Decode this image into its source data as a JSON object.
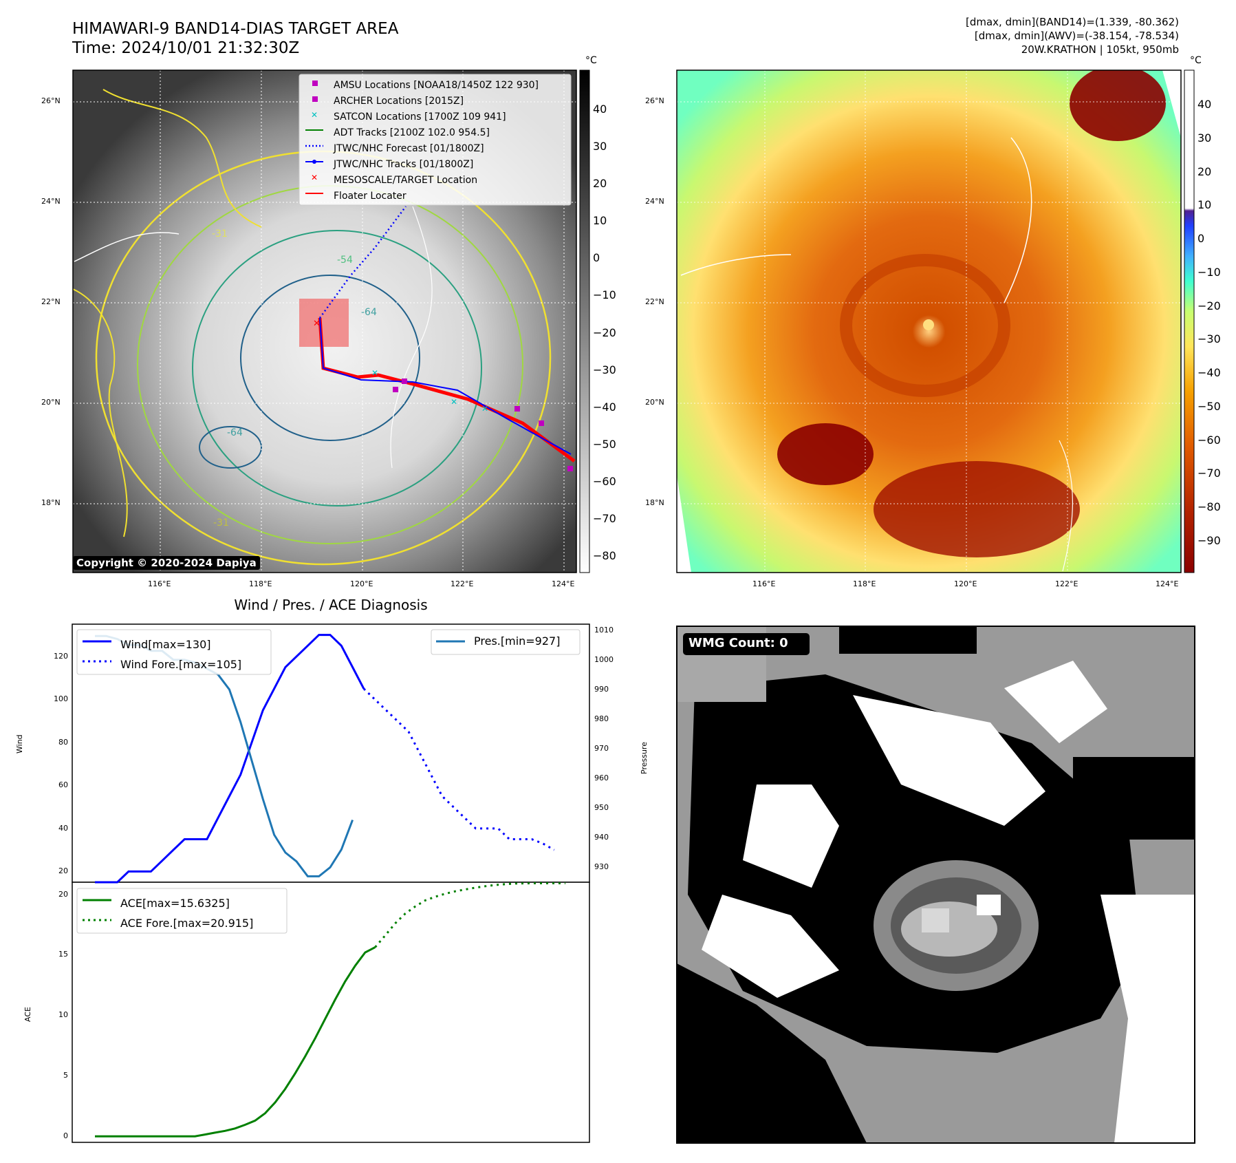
{
  "header": {
    "title_line1": "HIMAWARI-9 BAND14-DIAS TARGET AREA",
    "title_line2": "Time: 2024/10/01 21:32:30Z",
    "right_line1": "[dmax, dmin](BAND14)=(1.339, -80.362)",
    "right_line2": "[dmax, dmin](AWV)=(-38.154, -78.534)",
    "right_line3": "20W.KRATHON | 105kt, 950mb"
  },
  "map_axes": {
    "lat_labels": [
      "26°N",
      "24°N",
      "22°N",
      "20°N",
      "18°N"
    ],
    "lon_labels": [
      "116°E",
      "118°E",
      "120°E",
      "122°E",
      "124°E"
    ]
  },
  "panel1": {
    "copyright": "Copyright © 2020-2024 Dapiya",
    "contour_labels": [
      "-31",
      "-54",
      "-64"
    ],
    "legend": [
      {
        "label": "AMSU Locations [NOAA18/1450Z 122 930]",
        "color": "#c000c0",
        "marker": "square"
      },
      {
        "label": "ARCHER Locations [2015Z]",
        "color": "#c000c0",
        "marker": "square"
      },
      {
        "label": "SATCON Locations [1700Z 109 941]",
        "color": "#00c0c0",
        "marker": "x"
      },
      {
        "label": "ADT Tracks [2100Z 102.0 954.5]",
        "color": "#008000",
        "marker": "line"
      },
      {
        "label": "JTWC/NHC Forecast [01/1800Z]",
        "color": "#0000ff",
        "marker": "dotted"
      },
      {
        "label": "JTWC/NHC Tracks [01/1800Z]",
        "color": "#0000ff",
        "marker": "line-dot"
      },
      {
        "label": "MESOSCALE/TARGET Location",
        "color": "#ff0000",
        "marker": "x"
      },
      {
        "label": "Floater Locater",
        "color": "#ff0000",
        "marker": "line"
      }
    ],
    "colorbar": {
      "unit": "°C",
      "ticks": [
        "40",
        "30",
        "20",
        "10",
        "0",
        "−10",
        "−20",
        "−30",
        "−40",
        "−50",
        "−60",
        "−70",
        "−80"
      ]
    }
  },
  "panel2": {
    "colorbar": {
      "unit": "°C",
      "ticks": [
        "40",
        "30",
        "20",
        "10",
        "0",
        "−10",
        "−20",
        "−30",
        "−40",
        "−50",
        "−60",
        "−70",
        "−80",
        "−90"
      ]
    }
  },
  "panel3": {
    "title": "Wind / Pres. / ACE Diagnosis",
    "wind_ylabel": "Wind",
    "pres_ylabel": "Pressure",
    "ace_ylabel": "ACE",
    "wind_ticks": [
      "120",
      "100",
      "80",
      "60",
      "40",
      "20"
    ],
    "pres_ticks": [
      "1010",
      "1000",
      "990",
      "980",
      "970",
      "960",
      "950",
      "940",
      "930"
    ],
    "ace_ticks": [
      "20",
      "15",
      "10",
      "5",
      "0"
    ],
    "legend_wind": "Wind[max=130]",
    "legend_wind_fore": "Wind Fore.[max=105]",
    "legend_pres": "Pres.[min=927]",
    "legend_ace": "ACE[max=15.6325]",
    "legend_ace_fore": "ACE Fore.[max=20.915]"
  },
  "panel4": {
    "badge": "WMG Count: 0"
  },
  "chart_data": [
    {
      "type": "line",
      "title": "Wind / Pres. / ACE Diagnosis",
      "ylabel": "Wind",
      "ylim": [
        15,
        135
      ],
      "y2label": "Pressure",
      "y2lim": [
        925,
        1012
      ],
      "series": [
        {
          "name": "Wind[max=130]",
          "axis": "left",
          "color": "#0000ff",
          "style": "solid",
          "values": [
            15,
            15,
            15,
            20,
            20,
            20,
            25,
            30,
            35,
            35,
            35,
            45,
            55,
            65,
            80,
            95,
            105,
            115,
            120,
            125,
            130,
            130,
            125,
            115,
            105
          ]
        },
        {
          "name": "Wind Fore.[max=105]",
          "axis": "left",
          "color": "#0000ff",
          "style": "dotted",
          "offset": 24,
          "values": [
            105,
            100,
            95,
            90,
            85,
            75,
            65,
            55,
            50,
            45,
            40,
            40,
            40,
            35,
            35,
            35,
            33,
            30
          ]
        },
        {
          "name": "Pres.[min=927]",
          "axis": "right",
          "color": "#1f77b4",
          "style": "solid",
          "values": [
            1008,
            1008,
            1007,
            1005,
            1005,
            1003,
            1003,
            1000,
            1000,
            999,
            997,
            995,
            990,
            979,
            966,
            953,
            941,
            935,
            932,
            927,
            927,
            930,
            936,
            946
          ]
        }
      ]
    },
    {
      "type": "line",
      "ylabel": "ACE",
      "ylim": [
        -0.5,
        21
      ],
      "series": [
        {
          "name": "ACE[max=15.6325]",
          "color": "#008000",
          "style": "solid",
          "values": [
            0,
            0,
            0,
            0,
            0,
            0,
            0,
            0,
            0,
            0,
            0,
            0.15,
            0.3,
            0.45,
            0.65,
            0.95,
            1.3,
            1.9,
            2.8,
            3.9,
            5.2,
            6.6,
            8.1,
            9.7,
            11.3,
            12.8,
            14.1,
            15.2,
            15.63
          ]
        },
        {
          "name": "ACE Fore.[max=20.915]",
          "color": "#008000",
          "style": "dotted",
          "offset": 28,
          "values": [
            15.63,
            16.6,
            17.6,
            18.4,
            19,
            19.5,
            19.8,
            20.05,
            20.25,
            20.4,
            20.55,
            20.67,
            20.77,
            20.84,
            20.89,
            20.91,
            20.915,
            20.915,
            20.915,
            20.915
          ]
        }
      ]
    }
  ]
}
